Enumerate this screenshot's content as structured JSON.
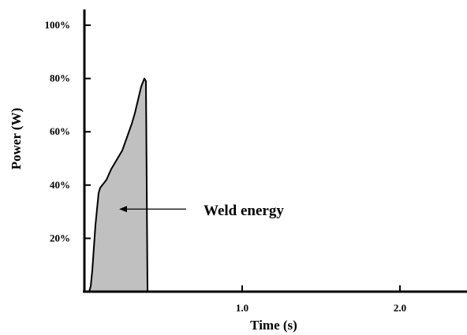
{
  "chart_data": {
    "type": "area",
    "title": "",
    "xlabel": "Time (s)",
    "ylabel": "Power (W)",
    "xlim": [
      0,
      2.5
    ],
    "ylim": [
      0,
      100
    ],
    "x_ticks": [
      {
        "value": 1.0,
        "label": "1.0"
      },
      {
        "value": 2.0,
        "label": "2.0"
      }
    ],
    "y_ticks": [
      {
        "value": 20,
        "label": "20%"
      },
      {
        "value": 40,
        "label": "40%"
      },
      {
        "value": 60,
        "label": "60%"
      },
      {
        "value": 80,
        "label": "80%"
      },
      {
        "value": 100,
        "label": "100%"
      }
    ],
    "series": [
      {
        "x": [
          0.03,
          0.04,
          0.05,
          0.07,
          0.09,
          0.1,
          0.14,
          0.17,
          0.2,
          0.24,
          0.27,
          0.3,
          0.32,
          0.34,
          0.36,
          0.38,
          0.38,
          0.39,
          0.4
        ],
        "y": [
          0,
          2,
          8,
          25,
          37,
          39,
          42,
          46,
          49,
          53,
          58,
          63,
          67,
          72,
          77,
          80,
          80,
          79,
          0
        ]
      }
    ],
    "fill_color": "#c0c0c0",
    "line_color": "#000000",
    "annotation": {
      "text": "Weld energy",
      "point_x": 0.22,
      "point_y": 31
    },
    "grid": false
  }
}
